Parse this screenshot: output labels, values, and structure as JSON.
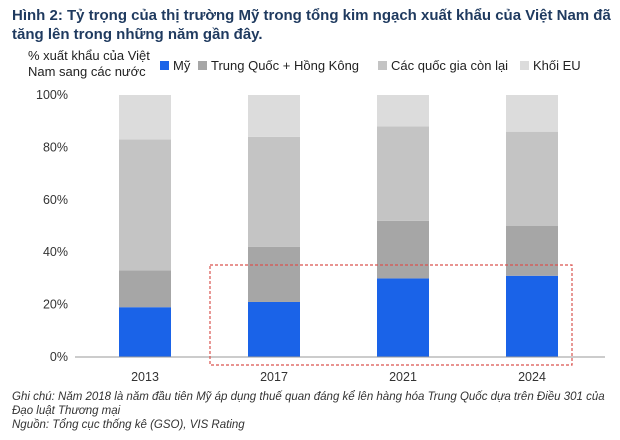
{
  "title": "Hình 2: Tỷ trọng của thị trường Mỹ trong tổng kim ngạch xuất khẩu của Việt Nam đã tăng lên trong những năm gần đây.",
  "notes": [
    "Ghi chú: Năm 2018 là năm đầu tiên Mỹ áp dụng thuế quan đáng kể lên hàng hóa Trung Quốc dựa trên Điều 301 của Đạo luật Thương mại",
    "Nguồn: Tổng cục thống kê (GSO), VIS Rating"
  ],
  "chart_data": {
    "type": "bar",
    "stacked": true,
    "categories": [
      "2013",
      "2017",
      "2021",
      "2024"
    ],
    "ylabel_lines": [
      "% xuất khẩu của Việt",
      "Nam sang các nước"
    ],
    "ylim": [
      0,
      100
    ],
    "yticks": [
      "0%",
      "20%",
      "40%",
      "60%",
      "80%",
      "100%"
    ],
    "ytick_values": [
      0,
      20,
      40,
      60,
      80,
      100
    ],
    "legend_position": "top",
    "series": [
      {
        "name": "Mỹ",
        "color": "#1a63e8",
        "values": [
          19,
          21,
          30,
          31
        ]
      },
      {
        "name": "Trung Quốc + Hồng Kông",
        "color": "#a6a6a6",
        "values": [
          14,
          21,
          22,
          19
        ]
      },
      {
        "name": "Các quốc gia còn lại",
        "color": "#c4c4c4",
        "values": [
          50,
          42,
          36,
          36
        ]
      },
      {
        "name": "Khối EU",
        "color": "#dcdcdc",
        "values": [
          17,
          16,
          12,
          14
        ]
      }
    ],
    "highlight_categories": [
      "2017",
      "2021",
      "2024"
    ]
  }
}
